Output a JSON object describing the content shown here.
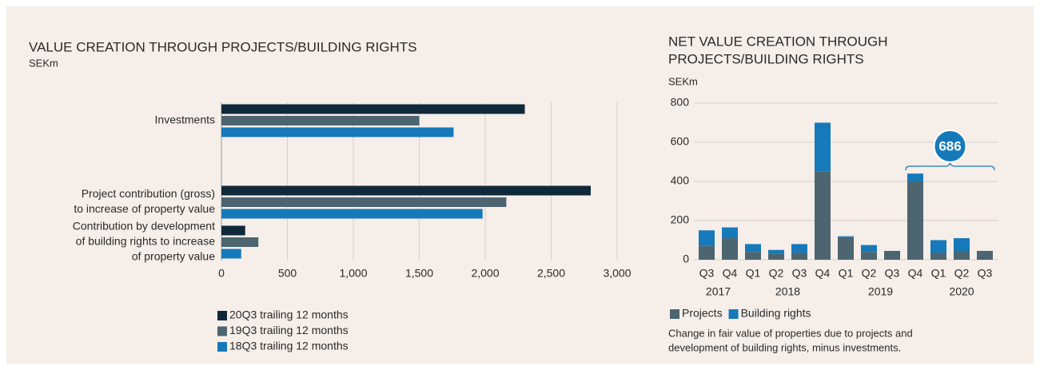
{
  "chart_data": [
    {
      "type": "barh",
      "title": "VALUE CREATION THROUGH PROJECTS/BUILDING RIGHTS",
      "subtitle": "SEKm",
      "categories": [
        [
          "Investments"
        ],
        [
          "Project contribution (gross)",
          "to increase of property value"
        ],
        [
          "Contribution by development",
          "of building rights to increase",
          "of property value"
        ]
      ],
      "series": [
        {
          "name": "20Q3 trailing 12 months",
          "color": "#10293a",
          "values": [
            2300,
            2800,
            180
          ]
        },
        {
          "name": "19Q3 trailing 12 months",
          "color": "#4c6570",
          "values": [
            1500,
            2160,
            280
          ]
        },
        {
          "name": "18Q3 trailing 12 months",
          "color": "#1679b9",
          "values": [
            1760,
            1980,
            150
          ]
        }
      ],
      "xlim": [
        0,
        3000
      ],
      "xticks": [
        0,
        500,
        {
          "value": 1000,
          "label": "1,000"
        },
        {
          "value": 1500,
          "label": "1,500"
        },
        {
          "value": 2000,
          "label": "2,000"
        },
        {
          "value": 2500,
          "label": "2,500"
        },
        {
          "value": 3000,
          "label": "3,000"
        }
      ],
      "grid": true
    },
    {
      "type": "stacked_bar",
      "title": [
        "NET VALUE CREATION THROUGH",
        "PROJECTS/BUILDING RIGHTS"
      ],
      "subtitle": "SEKm",
      "categories": [
        "Q3",
        "Q4",
        "Q1",
        "Q2",
        "Q3",
        "Q4",
        "Q1",
        "Q2",
        "Q3",
        "Q4",
        "Q1",
        "Q2",
        "Q3"
      ],
      "groups": [
        {
          "name": "2017",
          "count": 2
        },
        {
          "name": "2018",
          "count": 4
        },
        {
          "name": "2019",
          "count": 4
        },
        {
          "name": "2020",
          "count": 3
        }
      ],
      "series": [
        {
          "name": "Projects",
          "color": "#4c6570",
          "values": [
            70,
            110,
            40,
            30,
            35,
            450,
            115,
            40,
            45,
            400,
            35,
            45,
            45
          ]
        },
        {
          "name": "Building rights",
          "color": "#1679b9",
          "values": [
            80,
            55,
            40,
            20,
            45,
            250,
            5,
            35,
            0,
            40,
            65,
            65,
            0
          ]
        }
      ],
      "ylim": [
        0,
        800
      ],
      "yticks": [
        0,
        200,
        400,
        600,
        800
      ],
      "grid": true,
      "annotation": {
        "text": "686",
        "value": 686
      },
      "note": [
        "Change in fair value of properties due to projects and",
        "development of building rights, minus investments."
      ]
    }
  ]
}
